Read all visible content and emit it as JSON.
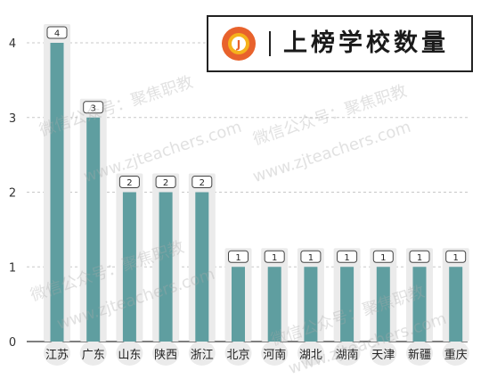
{
  "chart_data": {
    "type": "bar",
    "title": "上榜学校数量",
    "categories": [
      "江苏",
      "广东",
      "山东",
      "陕西",
      "浙江",
      "北京",
      "河南",
      "湖北",
      "湖南",
      "天津",
      "新疆",
      "重庆"
    ],
    "values": [
      4,
      3,
      2,
      2,
      2,
      1,
      1,
      1,
      1,
      1,
      1,
      1
    ],
    "ylim": [
      0,
      4
    ],
    "yticks": [
      0,
      1,
      2,
      3,
      4
    ],
    "grid": true,
    "bar_color": "#5f9ea0",
    "track_color": "#ebebeb"
  },
  "watermark": [
    "微信公众号：聚焦职教",
    "www.zjteachers.com"
  ],
  "colors": {
    "logo_outer": "#e8622c",
    "logo_inner": "#f5b21c"
  }
}
